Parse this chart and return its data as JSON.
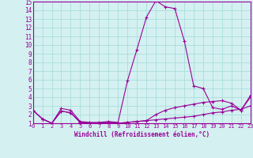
{
  "x": [
    0,
    1,
    2,
    3,
    4,
    5,
    6,
    7,
    8,
    9,
    10,
    11,
    12,
    13,
    14,
    15,
    16,
    17,
    18,
    19,
    20,
    21,
    22,
    23
  ],
  "line1": [
    2.5,
    1.5,
    1.0,
    2.7,
    2.5,
    1.2,
    1.1,
    1.1,
    1.2,
    1.1,
    5.9,
    9.5,
    13.2,
    15.1,
    14.4,
    14.2,
    10.5,
    5.3,
    5.0,
    2.8,
    2.6,
    3.0,
    2.5,
    4.0
  ],
  "line2": [
    2.5,
    1.5,
    1.0,
    2.4,
    2.2,
    1.1,
    1.0,
    1.0,
    1.1,
    1.0,
    1.1,
    1.2,
    1.3,
    1.4,
    1.5,
    1.6,
    1.7,
    1.8,
    2.0,
    2.2,
    2.3,
    2.5,
    2.6,
    3.0
  ],
  "line3": [
    2.5,
    1.5,
    1.0,
    2.4,
    2.2,
    1.1,
    1.0,
    1.0,
    1.1,
    1.0,
    1.1,
    1.2,
    1.3,
    2.0,
    2.5,
    2.8,
    3.0,
    3.2,
    3.4,
    3.5,
    3.6,
    3.3,
    2.5,
    4.2
  ],
  "line_color": "#990099",
  "bg_color": "#d4f0f0",
  "grid_color": "#aadddd",
  "xlabel": "Windchill (Refroidissement éolien,°C)",
  "ylim": [
    1,
    15
  ],
  "xlim": [
    0,
    23
  ],
  "yticks": [
    1,
    2,
    3,
    4,
    5,
    6,
    7,
    8,
    9,
    10,
    11,
    12,
    13,
    14,
    15
  ],
  "xticks": [
    0,
    1,
    2,
    3,
    4,
    5,
    6,
    7,
    8,
    9,
    10,
    11,
    12,
    13,
    14,
    15,
    16,
    17,
    18,
    19,
    20,
    21,
    22,
    23
  ]
}
